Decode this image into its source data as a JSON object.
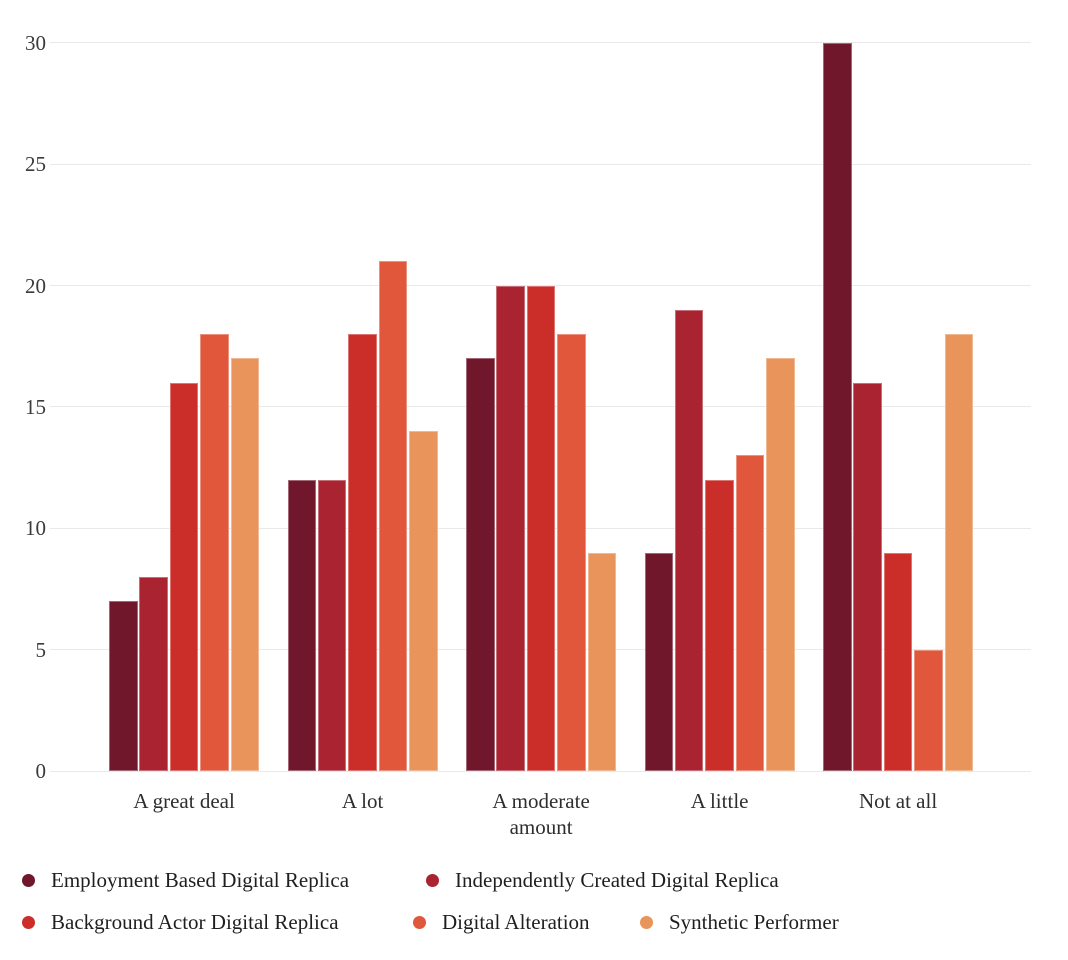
{
  "chart_data": {
    "type": "bar",
    "title": "",
    "xlabel": "",
    "ylabel": "",
    "categories": [
      "A great deal",
      "A lot",
      "A moderate amount",
      "A little",
      "Not at all"
    ],
    "series": [
      {
        "name": "Employment Based Digital Replica",
        "color": "#70172B",
        "values": [
          7,
          12,
          17,
          9,
          30
        ]
      },
      {
        "name": "Independently Created Digital Replica",
        "color": "#A92330",
        "values": [
          8,
          12,
          20,
          19,
          16
        ]
      },
      {
        "name": "Background Actor Digital Replica",
        "color": "#CB2D29",
        "values": [
          16,
          18,
          20,
          12,
          9
        ]
      },
      {
        "name": "Digital Alteration",
        "color": "#E0573B",
        "values": [
          18,
          21,
          18,
          13,
          5
        ]
      },
      {
        "name": "Synthetic Performer",
        "color": "#E9945A",
        "values": [
          17,
          14,
          9,
          17,
          18
        ]
      }
    ],
    "ylim": [
      0,
      30
    ],
    "y_ticks": [
      0,
      5,
      10,
      15,
      20,
      25,
      30
    ],
    "grid": true,
    "legend_position": "bottom",
    "legend_rows": [
      [
        0,
        1
      ],
      [
        2,
        3,
        4
      ]
    ]
  },
  "style": {
    "background": "#ffffff",
    "grid_color": "#e9e9e9",
    "axis_text_color": "#3b3b3b",
    "legend_text_color": "#1f1f1f"
  }
}
